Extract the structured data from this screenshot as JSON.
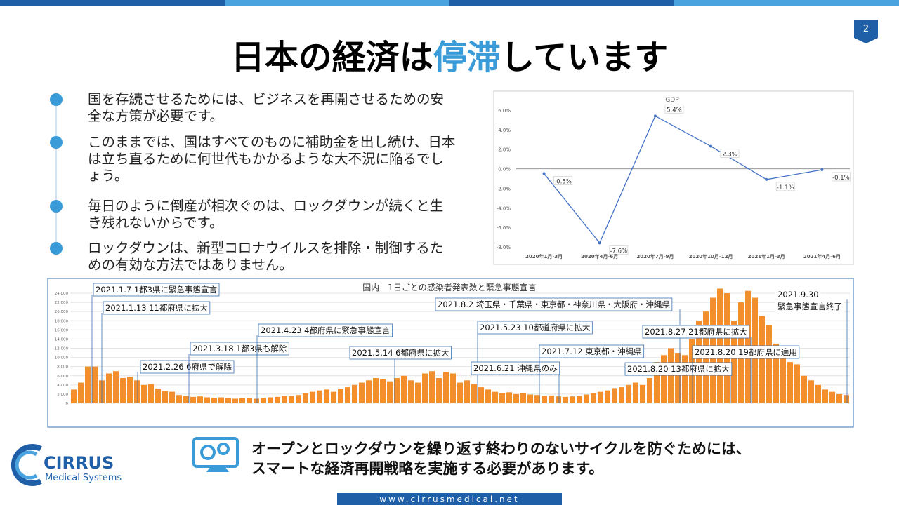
{
  "slide": {
    "page_number": "2",
    "title": [
      "日本の経済は",
      "停滞",
      "しています"
    ],
    "bullets": [
      "国を存続させるためには、ビジネスを再開させるための安全な方策が必要です。",
      "このままでは、国はすべてのものに補助金を出し続け、日本は立ち直るために何世代もかかるような大不況に陥るでしょう。",
      "毎日のように倒産が相次ぐのは、ロックダウンが続くと生き残れないからです。",
      "ロックダウンは、新型コロナウイルスを排除・制御するための有効な方法ではありません。"
    ],
    "message": [
      "オープンとロックダウンを繰り返す終わりのないサイクルを防ぐためには、",
      "スマートな経済再開戦略を実施する必要があります。"
    ],
    "logo": {
      "name": "CIRRUS",
      "tagline": "Medical Systems"
    },
    "url": "www.cirrusmedical.net"
  },
  "chart_data": [
    {
      "type": "line",
      "title": "GDP",
      "categories": [
        "2020年1月-3月",
        "2020年4月-6月",
        "2020年7月-9月",
        "2020年10月-12月",
        "2021年1月-3月",
        "2021年4月-6月"
      ],
      "values": [
        -0.5,
        -7.6,
        5.4,
        2.3,
        -1.1,
        -0.1
      ],
      "value_labels": [
        "-0.5%",
        "-7.6%",
        "5.4%",
        "2.3%",
        "-1.1%",
        "-0.1%"
      ],
      "color": "#4472c4",
      "ylim": [
        -8,
        6
      ],
      "yticks": [
        {
          "value": -8,
          "label": "-8.0%"
        },
        {
          "value": -6,
          "label": "-6.0%"
        },
        {
          "value": -4,
          "label": "-4.0%"
        },
        {
          "value": -2,
          "label": "-2.0%"
        },
        {
          "value": 0,
          "label": "0.0%"
        },
        {
          "value": 2,
          "label": "2.0%"
        },
        {
          "value": 4,
          "label": "4.0%"
        },
        {
          "value": 6,
          "label": "6.0%"
        }
      ]
    },
    {
      "type": "bar",
      "title": "国内　1日ごとの感染者発表数と緊急事態宣言",
      "color": "#f28e2b",
      "values": [
        3000,
        4500,
        8000,
        8000,
        5000,
        6500,
        7000,
        5500,
        5800,
        5000,
        4000,
        4200,
        3200,
        2600,
        2500,
        1800,
        1600,
        1400,
        1500,
        1300,
        1200,
        1300,
        1100,
        1000,
        1100,
        1200,
        1000,
        1200,
        1300,
        1400,
        1600,
        1600,
        1800,
        2200,
        2500,
        2800,
        3000,
        2500,
        3200,
        3500,
        4000,
        4500,
        5000,
        5500,
        5200,
        4800,
        5500,
        6000,
        5000,
        4500,
        6500,
        7000,
        5500,
        6800,
        6500,
        4500,
        5000,
        4200,
        3500,
        3000,
        2500,
        2200,
        2400,
        2000,
        2300,
        1900,
        1800,
        1600,
        1700,
        1500,
        1400,
        1500,
        1600,
        1900,
        2200,
        2500,
        2800,
        3300,
        3500,
        4000,
        4500,
        4000,
        5500,
        9000,
        10500,
        12000,
        11000,
        10500,
        14000,
        18000,
        20000,
        23000,
        25000,
        24000,
        18000,
        22000,
        24500,
        23000,
        19000,
        17000,
        13000,
        10000,
        9000,
        8500,
        6000,
        5000,
        4000,
        3000,
        2500,
        2000,
        1800
      ],
      "ylim": [
        0,
        24000
      ],
      "yticks": [
        0,
        {
          "value": 2000,
          "label": "2,000"
        },
        {
          "value": 4000,
          "label": "4,000"
        },
        {
          "value": 6000,
          "label": "6,000"
        },
        {
          "value": 8000,
          "label": "8,000"
        },
        {
          "value": 10000,
          "label": "10,000"
        },
        {
          "value": 12000,
          "label": "12,000"
        },
        {
          "value": 14000,
          "label": "14,000"
        },
        {
          "value": 16000,
          "label": "16,000"
        },
        {
          "value": 18000,
          "label": "18,000"
        },
        {
          "value": 20000,
          "label": "20,000"
        },
        {
          "value": 22000,
          "label": "22,000"
        },
        {
          "value": 24000,
          "label": "24,000"
        }
      ],
      "grid": true,
      "annotations": [
        "2021.1.7 1都3県に緊急事態宣言",
        "2021.1.13 11都府県に拡大",
        "2021.2.26 6府県で解除",
        "2021.3.18 1都3県も解除",
        "2021.4.23 4都府県に緊急事態宣言",
        "2021.5.14 6都府県に拡大",
        "2021.5.23 10都道府県に拡大",
        "2021.6.21 沖縄県のみ",
        "2021.7.12 東京都・沖縄県",
        "2021.8.2 埼玉県・千葉県・東京都・神奈川県・大阪府・沖縄県",
        "2021.8.20 13都府県に拡大",
        "2021.8.27 21都府県に拡大",
        "2021.8.20 19都府県に適用",
        "2021.9.30",
        "緊急事態宣言終了"
      ]
    }
  ]
}
